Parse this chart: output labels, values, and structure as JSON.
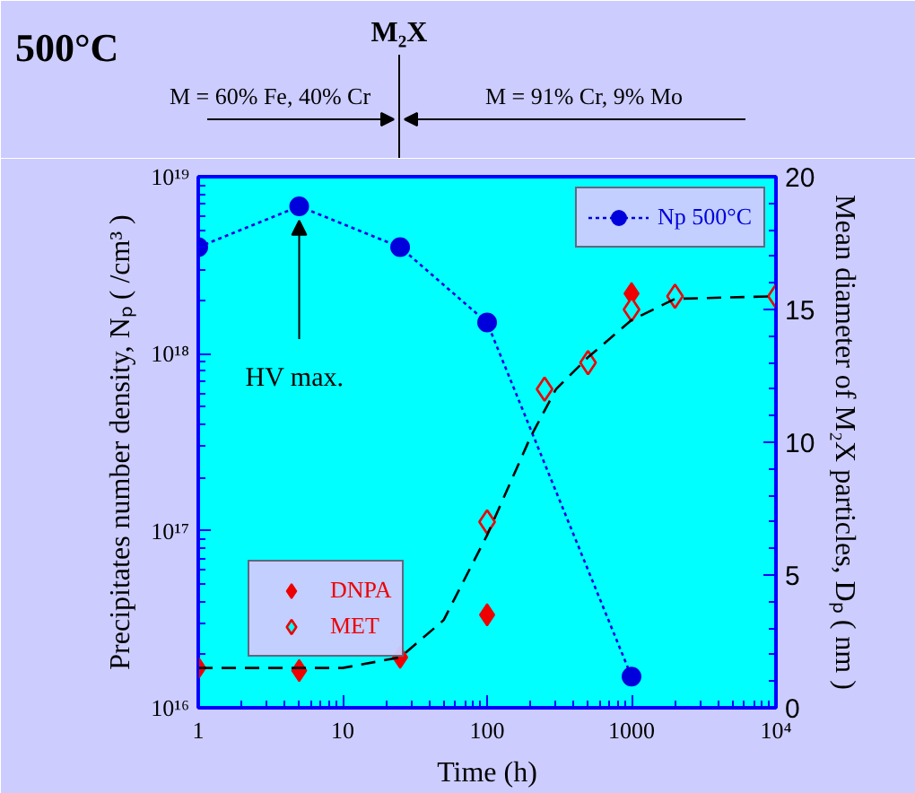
{
  "chart_data": {
    "type": "scatter",
    "title": "500°C",
    "xlabel": "Time (h)",
    "ylabel": "Precipitates number density, Nₚ ( /cm³ )",
    "y2label": "Mean diameter of M₂X particles, Dₚ ( nm )",
    "annotations": [
      "M₂X",
      "M = 60% Fe, 40% Cr",
      "M = 91% Cr, 9% Mo",
      {
        "text": "HV max.",
        "x": 5,
        "y": 6.8e+18
      }
    ],
    "log": "xy",
    "xlim": [
      1,
      10000
    ],
    "ylim": [
      1e+16,
      1e+19
    ],
    "y2lim": [
      0,
      20
    ],
    "xticks": [
      1,
      10,
      100,
      1000,
      {
        "value": 10000,
        "label": "10⁴"
      }
    ],
    "yticks": [
      {
        "value": 1e+16,
        "label": "10¹⁶"
      },
      {
        "value": 1e+17,
        "label": "10¹⁷"
      },
      {
        "value": 1e+18,
        "label": "10¹⁸"
      },
      {
        "value": 1e+19,
        "label": "10¹⁹"
      }
    ],
    "y2ticks": [
      0,
      5,
      10,
      15,
      20
    ],
    "grid": false,
    "legend": [
      "top right",
      "bottom left"
    ],
    "series": [
      {
        "name": "Np 500°C",
        "type": "line",
        "marker": "circle",
        "line_style": "dotted",
        "color": "#0000dd",
        "x": [
          1,
          5,
          25,
          100,
          1000
        ],
        "values": [
          4e+18,
          6.8e+18,
          4e+18,
          1.5e+18,
          1.5e+16
        ]
      },
      {
        "name": "DNPA",
        "marker": "diamond",
        "color": "#ee0000",
        "axis": "y2",
        "x": [
          1,
          5,
          25,
          100,
          1000
        ],
        "values": [
          1.5,
          1.4,
          1.9,
          3.5,
          15.6
        ]
      },
      {
        "name": "MET",
        "marker": "diamond_open",
        "color": "#ee0000",
        "axis": "y2",
        "x": [
          100,
          250,
          500,
          1000,
          2000,
          10000
        ],
        "values": [
          7.0,
          12.0,
          13.0,
          15.0,
          15.5,
          15.5
        ]
      },
      {
        "type": "line",
        "marker": "none",
        "line_style": "dashed",
        "color": "#000000",
        "axis": "y2",
        "x": [
          1,
          5,
          10,
          25,
          50,
          100,
          200,
          300,
          500,
          1000,
          2000,
          10000
        ],
        "values": [
          1.5,
          1.5,
          1.5,
          1.9,
          3.3,
          6.5,
          10.2,
          12.0,
          13.2,
          14.6,
          15.4,
          15.5
        ]
      }
    ]
  }
}
